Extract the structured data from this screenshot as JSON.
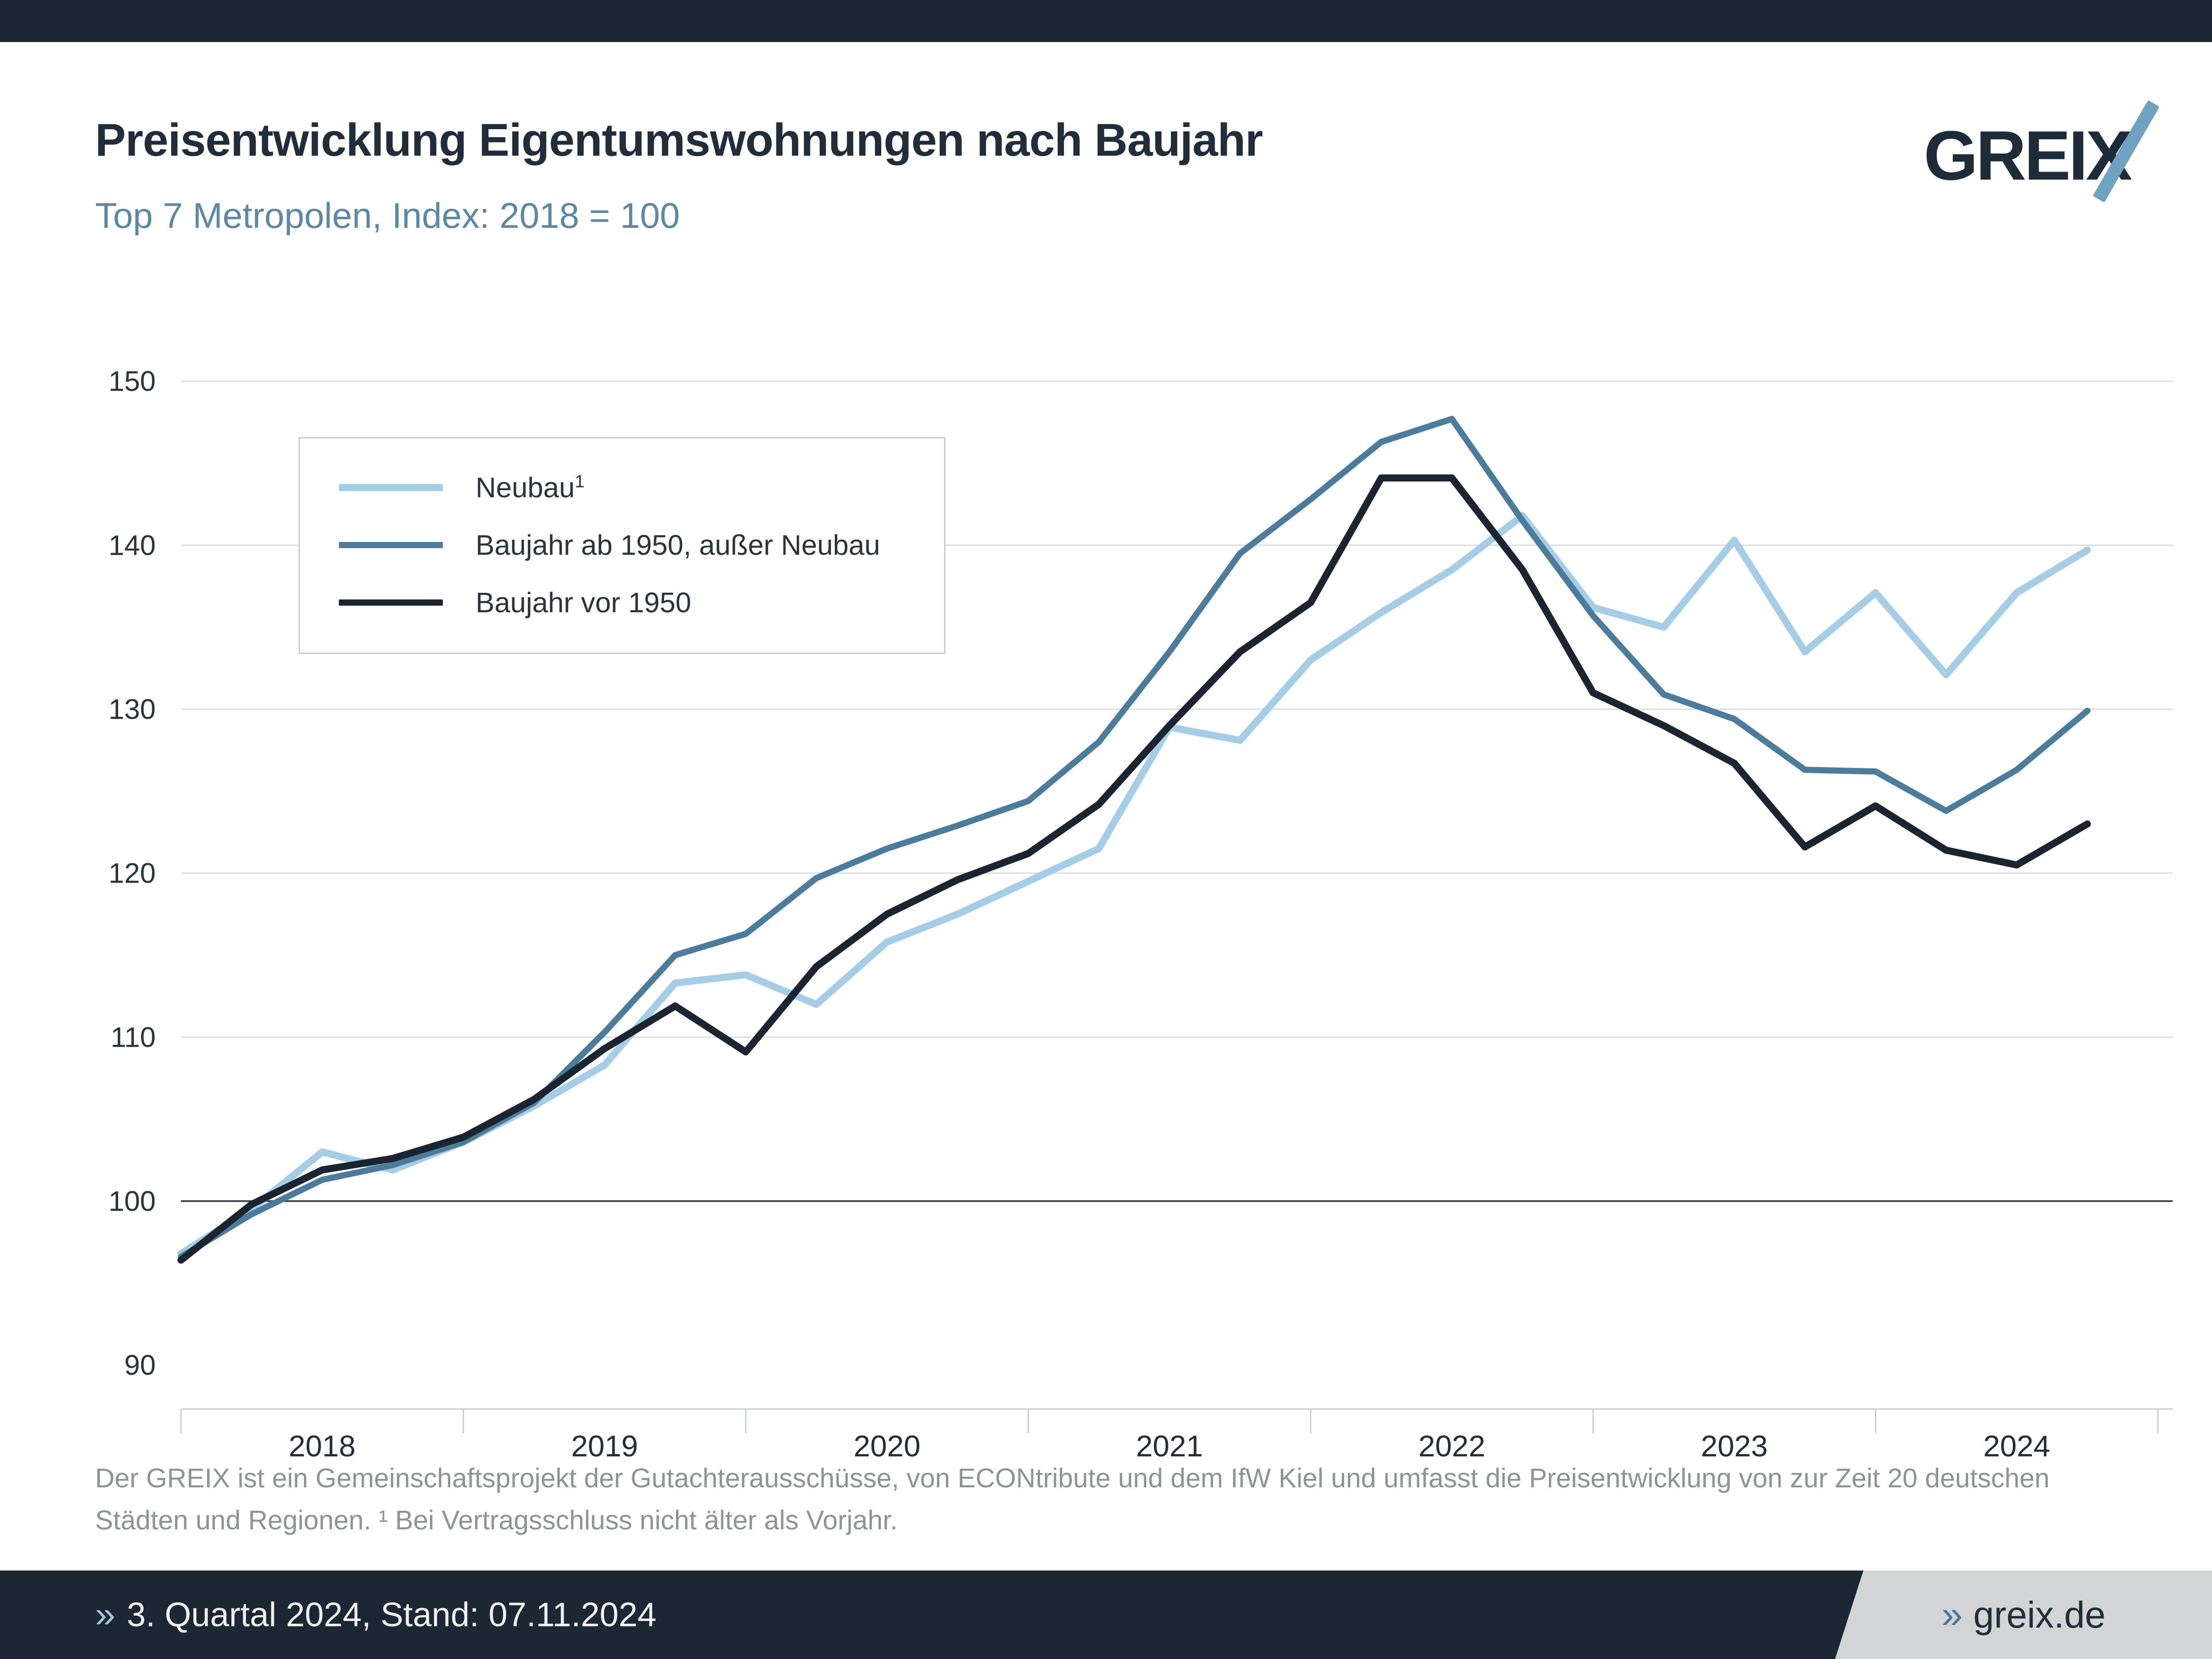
{
  "header": {
    "title": "Preisentwicklung Eigentumswohnungen nach Baujahr",
    "subtitle": "Top 7 Metropolen, Index: 2018 = 100",
    "logo_text": "GREIX"
  },
  "legend": {
    "items": [
      {
        "label": "Neubau",
        "sup": "1",
        "color": "#a5cee6",
        "swatch_height": 16
      },
      {
        "label": "Baujahr ab 1950, außer Neubau",
        "sup": "",
        "color": "#4b7c9b",
        "swatch_height": 14
      },
      {
        "label": "Baujahr vor 1950",
        "sup": "",
        "color": "#1a2531",
        "swatch_height": 14
      }
    ]
  },
  "chart_data": {
    "type": "line",
    "title": "Preisentwicklung Eigentumswohnungen nach Baujahr",
    "subtitle": "Top 7 Metropolen, Index: 2018 = 100",
    "x": [
      "2017Q4",
      "2018Q1",
      "2018Q2",
      "2018Q3",
      "2018Q4",
      "2019Q1",
      "2019Q2",
      "2019Q3",
      "2019Q4",
      "2020Q1",
      "2020Q2",
      "2020Q3",
      "2020Q4",
      "2021Q1",
      "2021Q2",
      "2021Q3",
      "2021Q4",
      "2022Q1",
      "2022Q2",
      "2022Q3",
      "2022Q4",
      "2023Q1",
      "2023Q2",
      "2023Q3",
      "2023Q4",
      "2024Q1",
      "2024Q2",
      "2024Q3"
    ],
    "year_labels": [
      "2018",
      "2019",
      "2020",
      "2021",
      "2022",
      "2023",
      "2024"
    ],
    "y_ticks": [
      150,
      140,
      130,
      120,
      110,
      100,
      90
    ],
    "y_gridlines": [
      150,
      140,
      130,
      120,
      110
    ],
    "baseline": 100,
    "ylim": [
      90,
      150
    ],
    "grid": "horizontal",
    "legend_position": "top-left",
    "series": [
      {
        "name": "Neubau",
        "color": "#a5cee6",
        "line_width": 16,
        "values": [
          96.8,
          99.5,
          103.0,
          101.9,
          103.6,
          105.8,
          108.3,
          113.3,
          113.8,
          112.0,
          115.8,
          117.5,
          119.5,
          121.5,
          128.9,
          128.1,
          133.0,
          135.9,
          138.5,
          141.8,
          136.2,
          135.0,
          140.3,
          133.5,
          137.1,
          132.1,
          137.1,
          139.7
        ]
      },
      {
        "name": "Baujahr ab 1950, außer Neubau",
        "color": "#4b7c9b",
        "line_width": 14,
        "values": [
          96.6,
          99.2,
          101.3,
          102.2,
          103.6,
          106.0,
          110.3,
          115.0,
          116.3,
          119.7,
          121.5,
          122.9,
          124.4,
          128.0,
          133.5,
          139.5,
          142.8,
          146.3,
          147.7,
          141.5,
          135.7,
          130.9,
          129.4,
          126.3,
          126.2,
          123.8,
          126.3,
          129.9
        ]
      },
      {
        "name": "Baujahr vor 1950",
        "color": "#1a2531",
        "line_width": 16,
        "values": [
          96.4,
          99.8,
          101.9,
          102.6,
          103.9,
          106.2,
          109.3,
          111.9,
          109.1,
          114.3,
          117.5,
          119.6,
          121.2,
          124.2,
          129.0,
          133.5,
          136.5,
          144.1,
          144.1,
          138.5,
          131.0,
          129.0,
          126.7,
          121.6,
          124.1,
          121.4,
          120.5,
          123.0
        ]
      }
    ]
  },
  "footnote": {
    "line1": "Der GREIX ist ein Gemeinschaftsprojekt der Gutachterausschüsse, von ECONtribute und dem IfW Kiel und umfasst die Preisentwicklung von zur Zeit 20 deutschen",
    "line2": "Städten und Regionen. ¹ Bei Vertragsschluss nicht älter als Vorjahr."
  },
  "footer": {
    "left_icon": "»",
    "left_text": "3. Quartal 2024, Stand: 07.11.2024",
    "right_icon": "»",
    "right_text": "greix.de"
  },
  "colors": {
    "bar": "#1c2733",
    "gridline": "#dadcde",
    "baseline": "#3b454f",
    "axis": "#c9cccf",
    "tick_label": "#2b333c",
    "year_label": "#252e37"
  }
}
